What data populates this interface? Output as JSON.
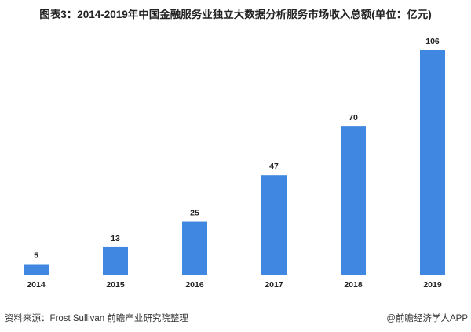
{
  "title": "图表3：2014-2019年中国金融服务业独立大数据分析服务市场收入总额(单位：亿元)",
  "chart_data": {
    "type": "bar",
    "title": "图表3：2014-2019年中国金融服务业独立大数据分析服务市场收入总额(单位：亿元)",
    "categories": [
      "2014",
      "2015",
      "2016",
      "2017",
      "2018",
      "2019"
    ],
    "values": [
      5,
      13,
      25,
      47,
      70,
      106
    ],
    "xlabel": "",
    "ylabel": "",
    "ylim": [
      0,
      106
    ],
    "grid": false,
    "legend": "none",
    "bar_color": "#3f87e0"
  },
  "footer": {
    "source": "资料来源：Frost Sullivan 前瞻产业研究院整理",
    "brand": "@前瞻经济学人APP"
  }
}
